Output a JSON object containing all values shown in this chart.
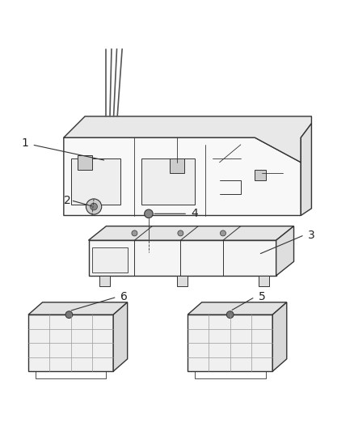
{
  "background_color": "#ffffff",
  "line_color": "#333333",
  "light_line_color": "#888888",
  "fill_color": "#f0f0f0",
  "label_color": "#222222",
  "label_fontsize": 10
}
